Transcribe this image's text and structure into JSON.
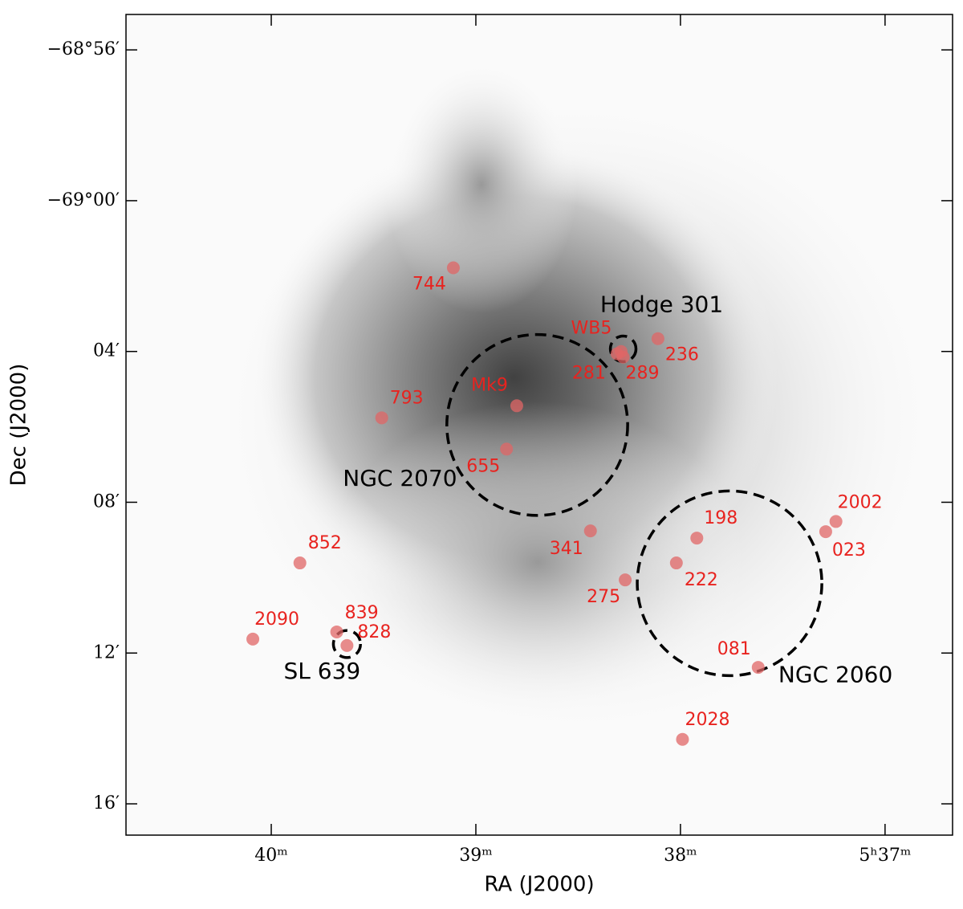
{
  "chart_data": {
    "type": "scatter",
    "xlabel": "RA (J2000)",
    "ylabel": "Dec (J2000)",
    "xlim": [
      40.71,
      36.67
    ],
    "ylim": [
      -4156.83,
      -4135.06
    ],
    "xticks": [
      {
        "value": 40,
        "label": "40ᵐ"
      },
      {
        "value": 39,
        "label": "39ᵐ"
      },
      {
        "value": 38,
        "label": "38ᵐ"
      },
      {
        "value": 37,
        "label": "5ʰ37ᵐ"
      }
    ],
    "yticks": [
      {
        "value": -4136,
        "label": "−68°56′"
      },
      {
        "value": -4140,
        "label": "−69°00′"
      },
      {
        "value": -4144,
        "label": "04′"
      },
      {
        "value": -4148,
        "label": "08′"
      },
      {
        "value": -4152,
        "label": "12′"
      },
      {
        "value": -4156,
        "label": "16′"
      }
    ],
    "marker_color": "#e06666",
    "points": [
      {
        "label": "744",
        "x": 39.11,
        "y": -4141.78
      },
      {
        "label": "WB5",
        "x": 38.29,
        "y": -4144.0
      },
      {
        "label": "281",
        "x": 38.31,
        "y": -4144.06
      },
      {
        "label": "289",
        "x": 38.28,
        "y": -4144.15
      },
      {
        "label": "236",
        "x": 38.11,
        "y": -4143.66
      },
      {
        "label": "Mk9",
        "x": 38.8,
        "y": -4145.44
      },
      {
        "label": "793",
        "x": 39.46,
        "y": -4145.76
      },
      {
        "label": "655",
        "x": 38.85,
        "y": -4146.59
      },
      {
        "label": "341",
        "x": 38.44,
        "y": -4148.76
      },
      {
        "label": "2002",
        "x": 37.24,
        "y": -4148.51
      },
      {
        "label": "023",
        "x": 37.29,
        "y": -4148.78
      },
      {
        "label": "198",
        "x": 37.92,
        "y": -4148.95
      },
      {
        "label": "222",
        "x": 38.02,
        "y": -4149.61
      },
      {
        "label": "275",
        "x": 38.27,
        "y": -4150.06
      },
      {
        "label": "852",
        "x": 39.86,
        "y": -4149.61
      },
      {
        "label": "839",
        "x": 39.68,
        "y": -4151.44
      },
      {
        "label": "828",
        "x": 39.63,
        "y": -4151.8
      },
      {
        "label": "2090",
        "x": 40.09,
        "y": -4151.63
      },
      {
        "label": "081",
        "x": 37.62,
        "y": -4152.38
      },
      {
        "label": "2028",
        "x": 37.99,
        "y": -4154.29
      }
    ],
    "regions": [
      {
        "label": "NGC 2070",
        "x": 38.7,
        "y": -4145.95,
        "radius": 2.4
      },
      {
        "label": "Hodge 301",
        "x": 38.28,
        "y": -4143.93,
        "radius": 0.34
      },
      {
        "label": "NGC 2060",
        "x": 37.76,
        "y": -4150.15,
        "radius": 2.45
      },
      {
        "label": "SL 639",
        "x": 39.63,
        "y": -4151.76,
        "radius": 0.36
      }
    ]
  }
}
